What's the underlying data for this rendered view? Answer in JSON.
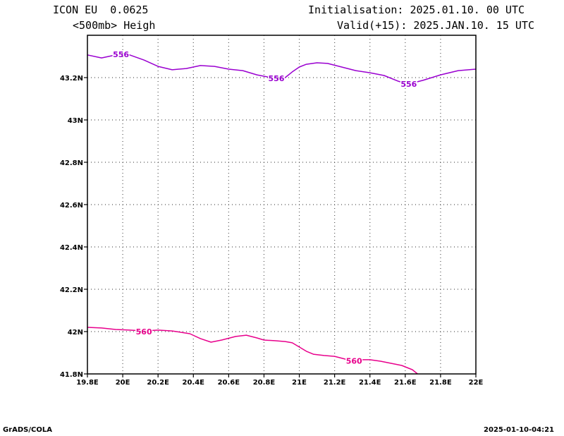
{
  "header": {
    "model": "ICON EU  0.0625",
    "field": "<500mb> Heigh",
    "init": "Initialisation: 2025.01.10. 00 UTC",
    "valid": "Valid(+15): 2025.JAN.10. 15 UTC"
  },
  "footer": {
    "left": "GrADS/COLA",
    "right": "2025-01-10-04:21"
  },
  "chart_data": {
    "type": "line",
    "title": "<500mb> Heigh",
    "xlim": [
      19.8,
      22.0
    ],
    "ylim": [
      41.8,
      43.4
    ],
    "x_ticks": [
      19.8,
      20.0,
      20.2,
      20.4,
      20.6,
      20.8,
      21.0,
      21.2,
      21.4,
      21.6,
      21.8,
      22.0
    ],
    "x_tick_labels": [
      "19.8E",
      "20E",
      "20.2E",
      "20.4E",
      "20.6E",
      "20.8E",
      "21E",
      "21.2E",
      "21.4E",
      "21.6E",
      "21.8E",
      "22E"
    ],
    "y_ticks": [
      41.8,
      42.0,
      42.2,
      42.4,
      42.6,
      42.8,
      43.0,
      43.2
    ],
    "y_tick_labels": [
      "41.8N",
      "42N",
      "42.2N",
      "42.4N",
      "42.6N",
      "42.8N",
      "43N",
      "43.2N"
    ],
    "grid": true,
    "grid_style": "dotted",
    "series": [
      {
        "name": "556",
        "color": "#9a00d0",
        "x": [
          19.8,
          19.88,
          19.96,
          20.04,
          20.12,
          20.2,
          20.28,
          20.36,
          20.44,
          20.52,
          20.6,
          20.68,
          20.76,
          20.84,
          20.92,
          20.96,
          21.0,
          21.04,
          21.1,
          21.16,
          21.24,
          21.32,
          21.4,
          21.48,
          21.56,
          21.62,
          21.7,
          21.8,
          21.9,
          22.0
        ],
        "y": [
          43.307,
          43.293,
          43.307,
          43.307,
          43.283,
          43.253,
          43.237,
          43.243,
          43.257,
          43.253,
          43.24,
          43.233,
          43.213,
          43.2,
          43.2,
          43.227,
          43.25,
          43.263,
          43.27,
          43.267,
          43.25,
          43.233,
          43.223,
          43.21,
          43.183,
          43.17,
          43.187,
          43.213,
          43.233,
          43.24
        ],
        "labels": [
          {
            "text": "556",
            "x": 19.99,
            "y": 43.31
          },
          {
            "text": "556",
            "x": 20.87,
            "y": 43.197
          },
          {
            "text": "556",
            "x": 21.62,
            "y": 43.17
          }
        ]
      },
      {
        "name": "560",
        "color": "#e8008c",
        "x": [
          19.8,
          19.88,
          19.96,
          20.04,
          20.12,
          20.2,
          20.28,
          20.38,
          20.44,
          20.5,
          20.56,
          20.64,
          20.7,
          20.76,
          20.8,
          20.86,
          20.92,
          20.96,
          21.0,
          21.04,
          21.08,
          21.14,
          21.2,
          21.26,
          21.32,
          21.36,
          21.4,
          21.46,
          21.52,
          21.58,
          21.64,
          21.67
        ],
        "y": [
          42.02,
          42.017,
          42.01,
          42.007,
          42.003,
          42.007,
          42.003,
          41.99,
          41.967,
          41.95,
          41.96,
          41.977,
          41.983,
          41.97,
          41.96,
          41.957,
          41.953,
          41.947,
          41.927,
          41.907,
          41.893,
          41.887,
          41.883,
          41.87,
          41.863,
          41.867,
          41.867,
          41.86,
          41.85,
          41.84,
          41.82,
          41.8
        ],
        "labels": [
          {
            "text": "560",
            "x": 20.12,
            "y": 42.0
          },
          {
            "text": "560",
            "x": 21.31,
            "y": 41.862
          }
        ]
      }
    ]
  }
}
